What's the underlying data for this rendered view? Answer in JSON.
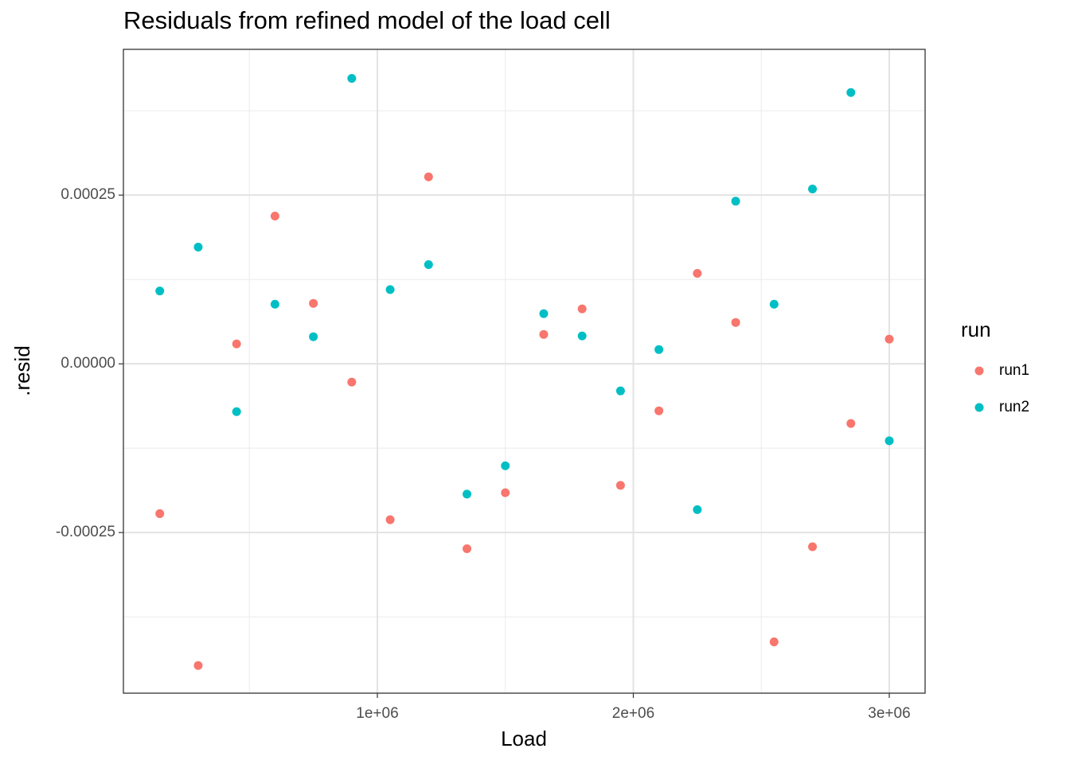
{
  "chart_data": {
    "type": "scatter",
    "title": "Residuals from refined model of the load cell",
    "x_label": "Load",
    "y_label": ".resid",
    "x": [
      150000,
      300000,
      450000,
      600000,
      750000,
      900000,
      1050000,
      1200000,
      1350000,
      1500000,
      1650000,
      1800000,
      1950000,
      2100000,
      2250000,
      2400000,
      2550000,
      2700000,
      2850000,
      3000000
    ],
    "series": [
      {
        "name": "run1",
        "color": "#F8766D",
        "values": [
          -0.000222,
          -0.000447,
          2.95e-05,
          0.000219,
          8.96e-05,
          -2.71e-05,
          -0.000231,
          0.000277,
          -0.000274,
          -0.000191,
          4.36e-05,
          8.14e-05,
          -0.00018,
          -6.96e-05,
          0.000134,
          6.13e-05,
          -0.000412,
          -0.000271,
          -8.84e-05,
          3.66e-05
        ]
      },
      {
        "name": "run2",
        "color": "#00BFC4",
        "values": [
          0.000108,
          0.000173,
          -7.08e-05,
          8.84e-05,
          4.01e-05,
          0.000423,
          0.00011,
          0.000147,
          -0.000193,
          -0.000151,
          7.43e-05,
          4.13e-05,
          -4.01e-05,
          2.12e-05,
          -0.000216,
          0.000241,
          8.84e-05,
          0.000259,
          0.000402,
          -0.000114
        ]
      }
    ],
    "legend_title": "run",
    "xlim": [
      7800,
      3140000
    ],
    "ylim": [
      -0.000488,
      0.000466
    ],
    "xticks": [
      {
        "value": 1000000,
        "label": "1e+06"
      },
      {
        "value": 2000000,
        "label": "2e+06"
      },
      {
        "value": 3000000,
        "label": "3e+06"
      }
    ],
    "yticks": [
      {
        "value": -0.00025,
        "label": "-0.00025"
      },
      {
        "value": 0,
        "label": "0.00000"
      },
      {
        "value": 0.00025,
        "label": "0.00025"
      }
    ],
    "x_minor_ticks": [
      500000,
      1500000,
      2500000
    ],
    "y_minor_ticks": [
      -0.000375,
      -0.000125,
      0.000125,
      0.000375
    ],
    "grid": true,
    "legend_position": "right"
  }
}
